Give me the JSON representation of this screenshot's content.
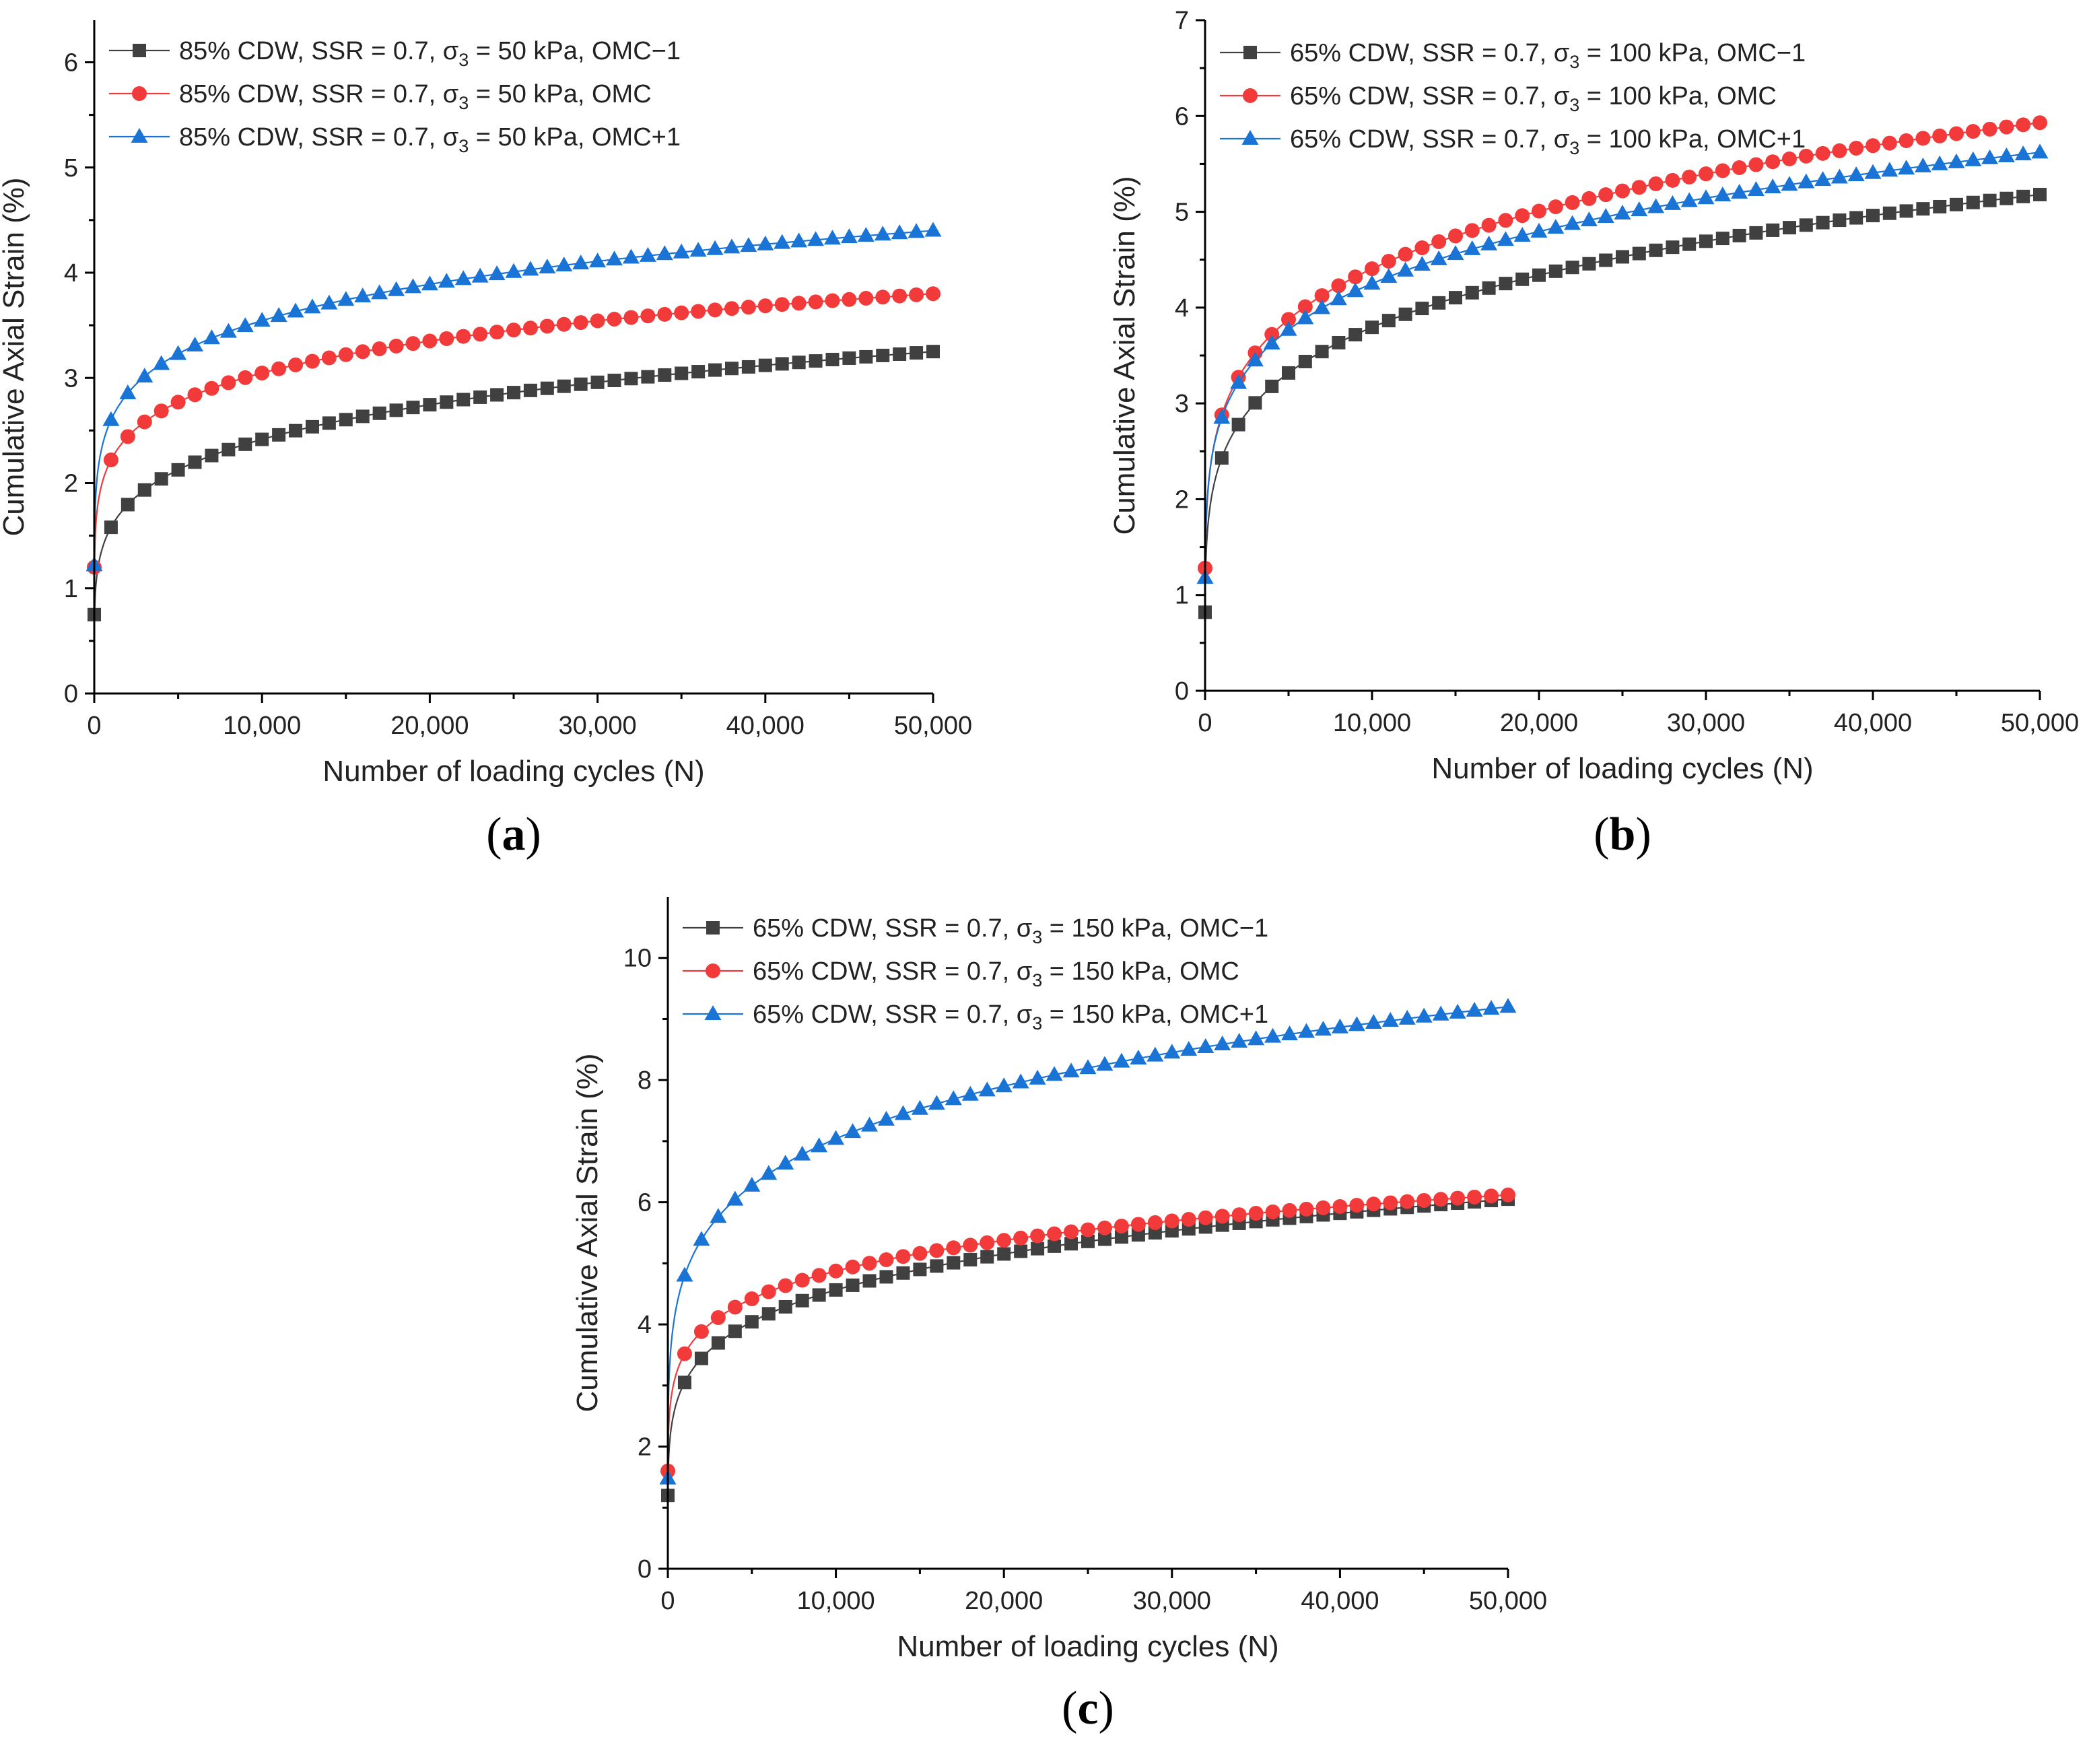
{
  "chart_data": [
    {
      "type": "scatter",
      "panel_label": "a",
      "xlabel": "Number of loading cycles (N)",
      "ylabel": "Cumulative Axial Strain (%)",
      "xlim": [
        0,
        50000
      ],
      "ylim": [
        0,
        6.4
      ],
      "xticks": [
        0,
        10000,
        20000,
        30000,
        40000,
        50000
      ],
      "xtick_labels": [
        "0",
        "10,000",
        "20,000",
        "30,000",
        "40,000",
        "50,000"
      ],
      "yticks": [
        0,
        1,
        2,
        3,
        4,
        5,
        6
      ],
      "ytick_labels": [
        "0",
        "1",
        "2",
        "3",
        "4",
        "5",
        "6"
      ],
      "legend_location": "top-left",
      "series": [
        {
          "name": "85% CDW, SSR = 0.7, σ3 = 50 kPa, OMC−1",
          "legend_prefix": "85% CDW, SSR = 0.7, σ",
          "legend_sub": "3",
          "legend_suffix": " = 50 kPa, OMC−1",
          "marker": "square",
          "color": "#404040",
          "start": 0.75,
          "n1000": 1.58,
          "end": 3.25
        },
        {
          "name": "85% CDW, SSR = 0.7, σ3 = 50 kPa, OMC",
          "legend_prefix": "85% CDW, SSR = 0.7, σ",
          "legend_sub": "3",
          "legend_suffix": " = 50 kPa, OMC",
          "marker": "circle",
          "color": "#f23a3a",
          "start": 1.2,
          "n1000": 2.22,
          "end": 3.8
        },
        {
          "name": "85% CDW, SSR = 0.7, σ3 = 50 kPa, OMC+1",
          "legend_prefix": "85% CDW, SSR = 0.7, σ",
          "legend_sub": "3",
          "legend_suffix": " = 50 kPa, OMC+1",
          "marker": "triangle",
          "color": "#1a74d6",
          "start": 1.22,
          "n1000": 2.6,
          "end": 4.4
        }
      ]
    },
    {
      "type": "scatter",
      "panel_label": "b",
      "xlabel": "Number of loading cycles (N)",
      "ylabel": "Cumulative Axial Strain (%)",
      "xlim": [
        0,
        50000
      ],
      "ylim": [
        0,
        7
      ],
      "xticks": [
        0,
        10000,
        20000,
        30000,
        40000,
        50000
      ],
      "xtick_labels": [
        "0",
        "10,000",
        "20,000",
        "30,000",
        "40,000",
        "50,000"
      ],
      "yticks": [
        0,
        1,
        2,
        3,
        4,
        5,
        6,
        7
      ],
      "ytick_labels": [
        "0",
        "1",
        "2",
        "3",
        "4",
        "5",
        "6",
        "7"
      ],
      "legend_location": "top-left",
      "series": [
        {
          "name": "65% CDW, SSR = 0.7, σ3 = 100 kPa, OMC−1",
          "legend_prefix": "65% CDW, SSR = 0.7, σ",
          "legend_sub": "3",
          "legend_suffix": " = 100 kPa, OMC−1",
          "marker": "square",
          "color": "#404040",
          "start": 0.82,
          "n1000": 2.43,
          "end": 5.18
        },
        {
          "name": "65% CDW, SSR = 0.7, σ3 = 100 kPa, OMC",
          "legend_prefix": "65% CDW, SSR = 0.7, σ",
          "legend_sub": "3",
          "legend_suffix": " = 100 kPa, OMC",
          "marker": "circle",
          "color": "#f23a3a",
          "start": 1.28,
          "n1000": 2.88,
          "end": 5.93
        },
        {
          "name": "65% CDW, SSR = 0.7, σ3 = 100 kPa, OMC+1",
          "legend_prefix": "65% CDW, SSR = 0.7, σ",
          "legend_sub": "3",
          "legend_suffix": " = 100 kPa, OMC+1",
          "marker": "triangle",
          "color": "#1a74d6",
          "start": 1.18,
          "n1000": 2.85,
          "end": 5.62
        }
      ]
    },
    {
      "type": "scatter",
      "panel_label": "c",
      "xlabel": "Number of loading cycles (N)",
      "ylabel": "Cumulative Axial Strain (%)",
      "xlim": [
        0,
        50000
      ],
      "ylim": [
        0,
        11
      ],
      "xticks": [
        0,
        10000,
        20000,
        30000,
        40000,
        50000
      ],
      "xtick_labels": [
        "0",
        "10,000",
        "20,000",
        "30,000",
        "40,000",
        "50,000"
      ],
      "yticks": [
        0,
        2,
        4,
        6,
        8,
        10
      ],
      "ytick_labels": [
        "0",
        "2",
        "4",
        "6",
        "8",
        "10"
      ],
      "legend_location": "top-left",
      "series": [
        {
          "name": "65% CDW, SSR = 0.7, σ3 = 150 kPa, OMC−1",
          "legend_prefix": "65% CDW, SSR = 0.7, σ",
          "legend_sub": "3",
          "legend_suffix": " = 150 kPa, OMC−1",
          "marker": "square",
          "color": "#404040",
          "start": 1.2,
          "n1000": 3.05,
          "end": 6.05
        },
        {
          "name": "65% CDW, SSR = 0.7, σ3 = 150 kPa, OMC",
          "legend_prefix": "65% CDW, SSR = 0.7, σ",
          "legend_sub": "3",
          "legend_suffix": " = 150 kPa, OMC",
          "marker": "circle",
          "color": "#f23a3a",
          "start": 1.6,
          "n1000": 3.52,
          "end": 6.12
        },
        {
          "name": "65% CDW, SSR = 0.7, σ3 = 150 kPa, OMC+1",
          "legend_prefix": "65% CDW, SSR = 0.7, σ",
          "legend_sub": "3",
          "legend_suffix": " = 150 kPa, OMC+1",
          "marker": "triangle",
          "color": "#1a74d6",
          "start": 1.48,
          "n1000": 4.8,
          "end": 9.2
        }
      ]
    }
  ]
}
